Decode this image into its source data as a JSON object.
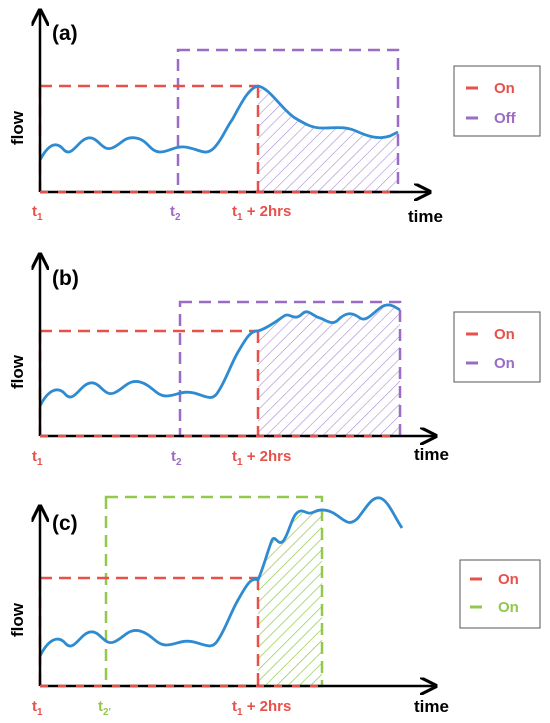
{
  "colors": {
    "red": "#e8514a",
    "purple": "#9a6cc6",
    "green": "#92c84c",
    "blue": "#2e8bd1",
    "black": "#000000"
  },
  "panels": [
    {
      "label": "(a)",
      "ylabel": "flow",
      "xlabel": "time",
      "t1": {
        "main": "t",
        "sub": "1"
      },
      "t2": {
        "main": "t",
        "sub": "2"
      },
      "t1plus": {
        "main": "t",
        "sub": "1",
        "rest": " + 2hrs"
      },
      "legend": [
        {
          "label": "On",
          "color": "#e8514a"
        },
        {
          "label": "Off",
          "color": "#9a6cc6"
        }
      ]
    },
    {
      "label": "(b)",
      "ylabel": "flow",
      "xlabel": "time",
      "t1": {
        "main": "t",
        "sub": "1"
      },
      "t2": {
        "main": "t",
        "sub": "2"
      },
      "t1plus": {
        "main": "t",
        "sub": "1",
        "rest": " + 2hrs"
      },
      "legend": [
        {
          "label": "On",
          "color": "#e8514a"
        },
        {
          "label": "On",
          "color": "#9a6cc6"
        }
      ]
    },
    {
      "label": "(c)",
      "ylabel": "flow",
      "xlabel": "time",
      "t1": {
        "main": "t",
        "sub": "1"
      },
      "t2": {
        "main": "t",
        "sub": "2'"
      },
      "t1plus": {
        "main": "t",
        "sub": "1",
        "rest": " + 2hrs"
      },
      "legend": [
        {
          "label": "On",
          "color": "#e8514a"
        },
        {
          "label": "On",
          "color": "#92c84c"
        }
      ]
    }
  ]
}
